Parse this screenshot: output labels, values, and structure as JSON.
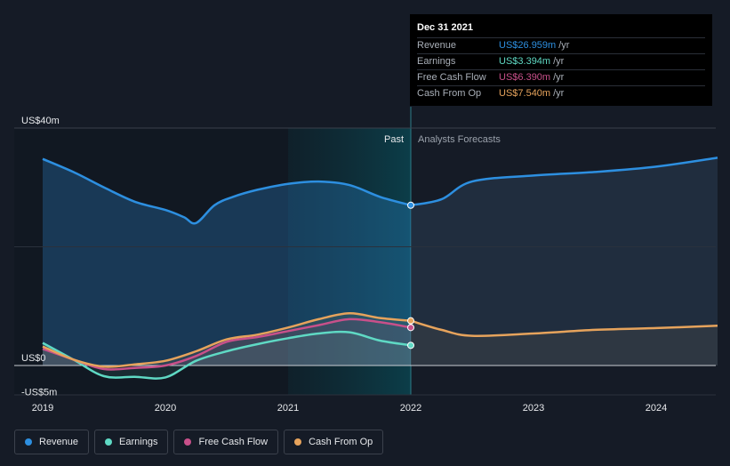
{
  "chart_data": {
    "type": "line",
    "currency_unit": "US$",
    "y_tick_labels": [
      "US$40m",
      "US$0",
      "-US$5m"
    ],
    "y_ticks": [
      40,
      0,
      -5
    ],
    "ylim": [
      -5,
      40
    ],
    "x_tick_labels": [
      "2019",
      "2020",
      "2021",
      "2022",
      "2023",
      "2024"
    ],
    "xlim": [
      2019.0,
      2024.5
    ],
    "past_label": "Past",
    "forecast_label": "Analysts Forecasts",
    "forecast_start": 2022.0,
    "series": [
      {
        "name": "Revenue",
        "color": "#2d8fe0",
        "x": [
          2019.0,
          2019.25,
          2019.5,
          2019.75,
          2020.0,
          2020.15,
          2020.25,
          2020.4,
          2020.55,
          2020.75,
          2021.0,
          2021.25,
          2021.5,
          2021.75,
          2022.0
        ],
        "y": [
          34.8,
          32.6,
          30.0,
          27.6,
          26.2,
          25.0,
          24.0,
          27.0,
          28.4,
          29.6,
          30.6,
          31.0,
          30.4,
          28.4,
          27.0
        ],
        "fx": [
          2022.0,
          2022.25,
          2022.5,
          2023.0,
          2023.5,
          2024.0,
          2024.5
        ],
        "fy": [
          27.0,
          28.0,
          31.0,
          32.0,
          32.6,
          33.5,
          35.0
        ]
      },
      {
        "name": "Earnings",
        "color": "#5fd9c4",
        "x": [
          2019.0,
          2019.25,
          2019.5,
          2019.75,
          2020.0,
          2020.25,
          2020.5,
          2020.75,
          2021.0,
          2021.25,
          2021.5,
          2021.75,
          2022.0
        ],
        "y": [
          3.8,
          1.0,
          -1.8,
          -1.9,
          -2.0,
          0.8,
          2.4,
          3.6,
          4.6,
          5.4,
          5.6,
          4.2,
          3.394
        ]
      },
      {
        "name": "Free Cash Flow",
        "color": "#c8508a",
        "x": [
          2019.0,
          2019.25,
          2019.5,
          2019.75,
          2020.0,
          2020.25,
          2020.5,
          2020.75,
          2021.0,
          2021.25,
          2021.5,
          2021.75,
          2022.0
        ],
        "y": [
          2.8,
          1.0,
          -0.6,
          -0.4,
          0.0,
          1.6,
          4.0,
          4.8,
          5.8,
          6.8,
          7.8,
          7.3,
          6.39
        ]
      },
      {
        "name": "Cash From Op",
        "color": "#e6a35c",
        "x": [
          2019.0,
          2019.25,
          2019.5,
          2019.75,
          2020.0,
          2020.25,
          2020.5,
          2020.75,
          2021.0,
          2021.25,
          2021.5,
          2021.75,
          2022.0
        ],
        "y": [
          3.2,
          1.0,
          -0.2,
          0.2,
          0.8,
          2.4,
          4.4,
          5.2,
          6.4,
          7.8,
          8.8,
          8.0,
          7.54
        ],
        "fx": [
          2022.0,
          2022.25,
          2022.5,
          2023.0,
          2023.5,
          2024.0,
          2024.5
        ],
        "fy": [
          7.54,
          6.0,
          5.0,
          5.4,
          6.0,
          6.3,
          6.7
        ]
      }
    ]
  },
  "tooltip": {
    "date": "Dec 31 2021",
    "rows": [
      {
        "name": "Revenue",
        "value": "US$26.959m",
        "unit": "/yr",
        "color": "#2d8fe0"
      },
      {
        "name": "Earnings",
        "value": "US$3.394m",
        "unit": "/yr",
        "color": "#5fd9c4"
      },
      {
        "name": "Free Cash Flow",
        "value": "US$6.390m",
        "unit": "/yr",
        "color": "#c8508a"
      },
      {
        "name": "Cash From Op",
        "value": "US$7.540m",
        "unit": "/yr",
        "color": "#e6a35c"
      }
    ]
  },
  "legend": [
    {
      "label": "Revenue",
      "color": "#2d8fe0"
    },
    {
      "label": "Earnings",
      "color": "#5fd9c4"
    },
    {
      "label": "Free Cash Flow",
      "color": "#c8508a"
    },
    {
      "label": "Cash From Op",
      "color": "#e6a35c"
    }
  ]
}
